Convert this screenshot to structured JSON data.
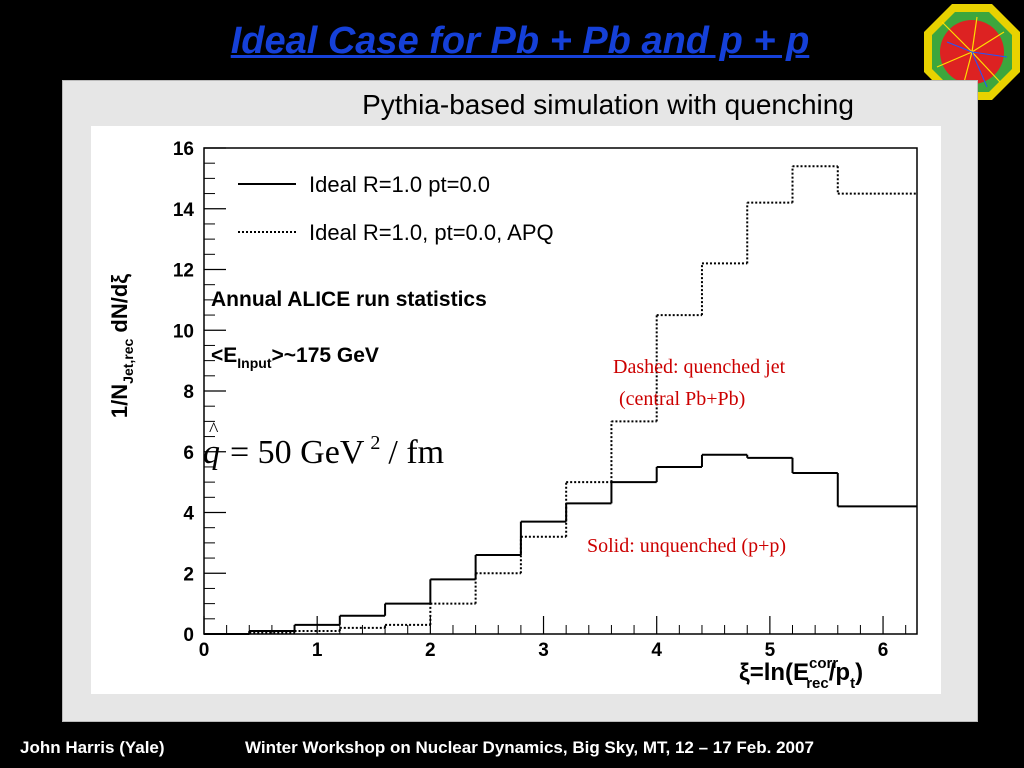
{
  "slide": {
    "title": "Ideal Case for Pb + Pb and p + p",
    "subtitle": "Pythia-based simulation with quenching",
    "footer_left": "John Harris (Yale)",
    "footer_right": "Winter Workshop on Nuclear Dynamics, Big Sky, MT, 12 – 17 Feb. 2007"
  },
  "chart_data": {
    "type": "line",
    "step": true,
    "xlabel": "ξ=ln(E_rec^corr/p_t)",
    "ylabel": "1/N_Jet,rec dN/dξ",
    "xlim": [
      0,
      6.3
    ],
    "ylim": [
      0,
      16
    ],
    "x_ticks": [
      0,
      1,
      2,
      3,
      4,
      5,
      6
    ],
    "y_ticks": [
      0,
      2,
      4,
      6,
      8,
      10,
      12,
      14,
      16
    ],
    "bin_edges": [
      0,
      0.4,
      0.8,
      1.2,
      1.6,
      2.0,
      2.4,
      2.8,
      3.2,
      3.6,
      4.0,
      4.4,
      4.8,
      5.2,
      5.6,
      6.3
    ],
    "series": [
      {
        "name": "Ideal R=1.0 pt=0.0",
        "style": "solid",
        "values": [
          0,
          0.1,
          0.3,
          0.6,
          1.0,
          1.8,
          2.6,
          3.7,
          4.3,
          5.0,
          5.5,
          5.9,
          5.8,
          5.3,
          4.2
        ]
      },
      {
        "name": "Ideal R=1.0, pt=0.0, APQ",
        "style": "dotted",
        "values": [
          0,
          0.05,
          0.1,
          0.2,
          0.3,
          1.0,
          2.0,
          3.2,
          5.0,
          7.0,
          10.5,
          12.2,
          14.2,
          15.4,
          14.5
        ]
      }
    ],
    "legend_placement": "top-left",
    "stats": {
      "line1": "Annual ALICE run statistics",
      "line2_pre": "<E",
      "line2_sub": "Input",
      "line2_post": ">~175 GeV"
    },
    "annotations": {
      "qhat_q": "q",
      "qhat_eq": "= 50 GeV",
      "qhat_exp": "2",
      "qhat_unit": "/ fm",
      "dashed_line1": "Dashed: quenched jet",
      "dashed_line2": "(central Pb+Pb)",
      "solid": "Solid: unquenched (p+p)"
    },
    "colors": {
      "annotation": "#cc0000",
      "title": "#1540d8"
    }
  }
}
